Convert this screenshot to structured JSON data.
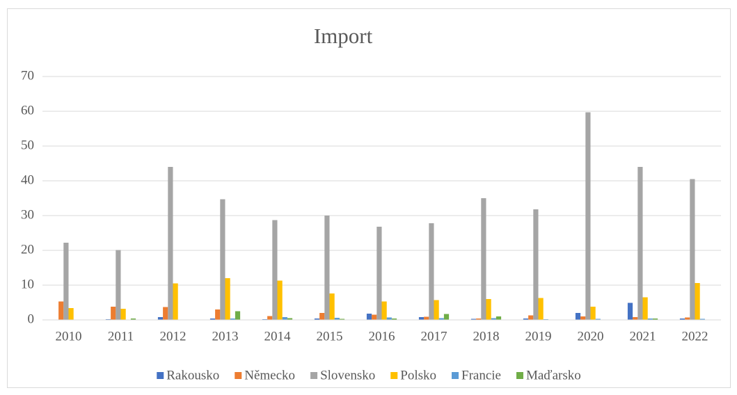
{
  "chart_data": {
    "type": "bar",
    "title": "Import",
    "categories": [
      "2010",
      "2011",
      "2012",
      "2013",
      "2014",
      "2015",
      "2016",
      "2017",
      "2018",
      "2019",
      "2020",
      "2021",
      "2022"
    ],
    "series": [
      {
        "name": "Rakousko",
        "color": "#4472c4",
        "values": [
          0.1,
          0.2,
          0.8,
          0.4,
          0.2,
          0.4,
          1.8,
          0.8,
          0.3,
          0.4,
          2.0,
          4.9,
          0.4
        ]
      },
      {
        "name": "Německo",
        "color": "#ed7d31",
        "values": [
          5.3,
          3.8,
          3.7,
          3.0,
          1.1,
          2.0,
          1.5,
          0.9,
          0.4,
          1.3,
          1.0,
          0.8,
          0.7
        ]
      },
      {
        "name": "Slovensko",
        "color": "#a5a5a5",
        "values": [
          22.2,
          20.1,
          44,
          34.7,
          28.7,
          30,
          26.8,
          27.8,
          35,
          31.8,
          59.7,
          44,
          40.5
        ]
      },
      {
        "name": "Polsko",
        "color": "#ffc000",
        "values": [
          3.4,
          3.2,
          10.5,
          12,
          11.3,
          7.6,
          5.3,
          5.7,
          6,
          6.3,
          3.8,
          6.5,
          10.6
        ]
      },
      {
        "name": "Francie",
        "color": "#5b9bd5",
        "values": [
          0,
          0.1,
          0,
          0.4,
          0.8,
          0.6,
          0.7,
          0.5,
          0.5,
          0.2,
          0.3,
          0.4,
          0.3
        ]
      },
      {
        "name": "Maďarsko",
        "color": "#70ad47",
        "values": [
          0,
          0.4,
          0,
          2.5,
          0.5,
          0.3,
          0.4,
          1.7,
          1.0,
          0.1,
          0.1,
          0.4,
          0
        ]
      }
    ],
    "ylim": [
      0,
      70
    ],
    "yticks": [
      0,
      10,
      20,
      30,
      40,
      50,
      60,
      70
    ],
    "grid": true,
    "legend": "bottom"
  }
}
